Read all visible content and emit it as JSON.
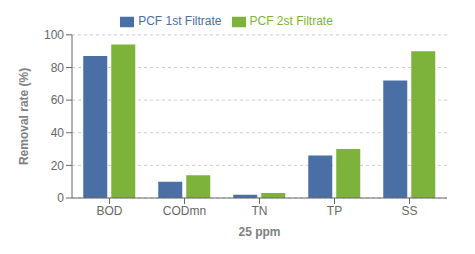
{
  "chart_data": {
    "type": "bar",
    "categories": [
      "BOD",
      "CODmn",
      "TN",
      "TP",
      "SS"
    ],
    "series": [
      {
        "name": "PCF 1st Filtrate",
        "color": "#4a6fa5",
        "values": [
          87,
          10,
          2,
          26,
          72
        ]
      },
      {
        "name": "PCF 2st Filtrate",
        "color": "#7db33a",
        "values": [
          94,
          14,
          3,
          30,
          90
        ]
      }
    ],
    "xlabel": "25 ppm",
    "ylabel": "Removal rate (%)",
    "ylim": [
      0,
      100
    ],
    "yticks": [
      0,
      20,
      40,
      60,
      80,
      100
    ],
    "grid": true,
    "legend": "top"
  }
}
